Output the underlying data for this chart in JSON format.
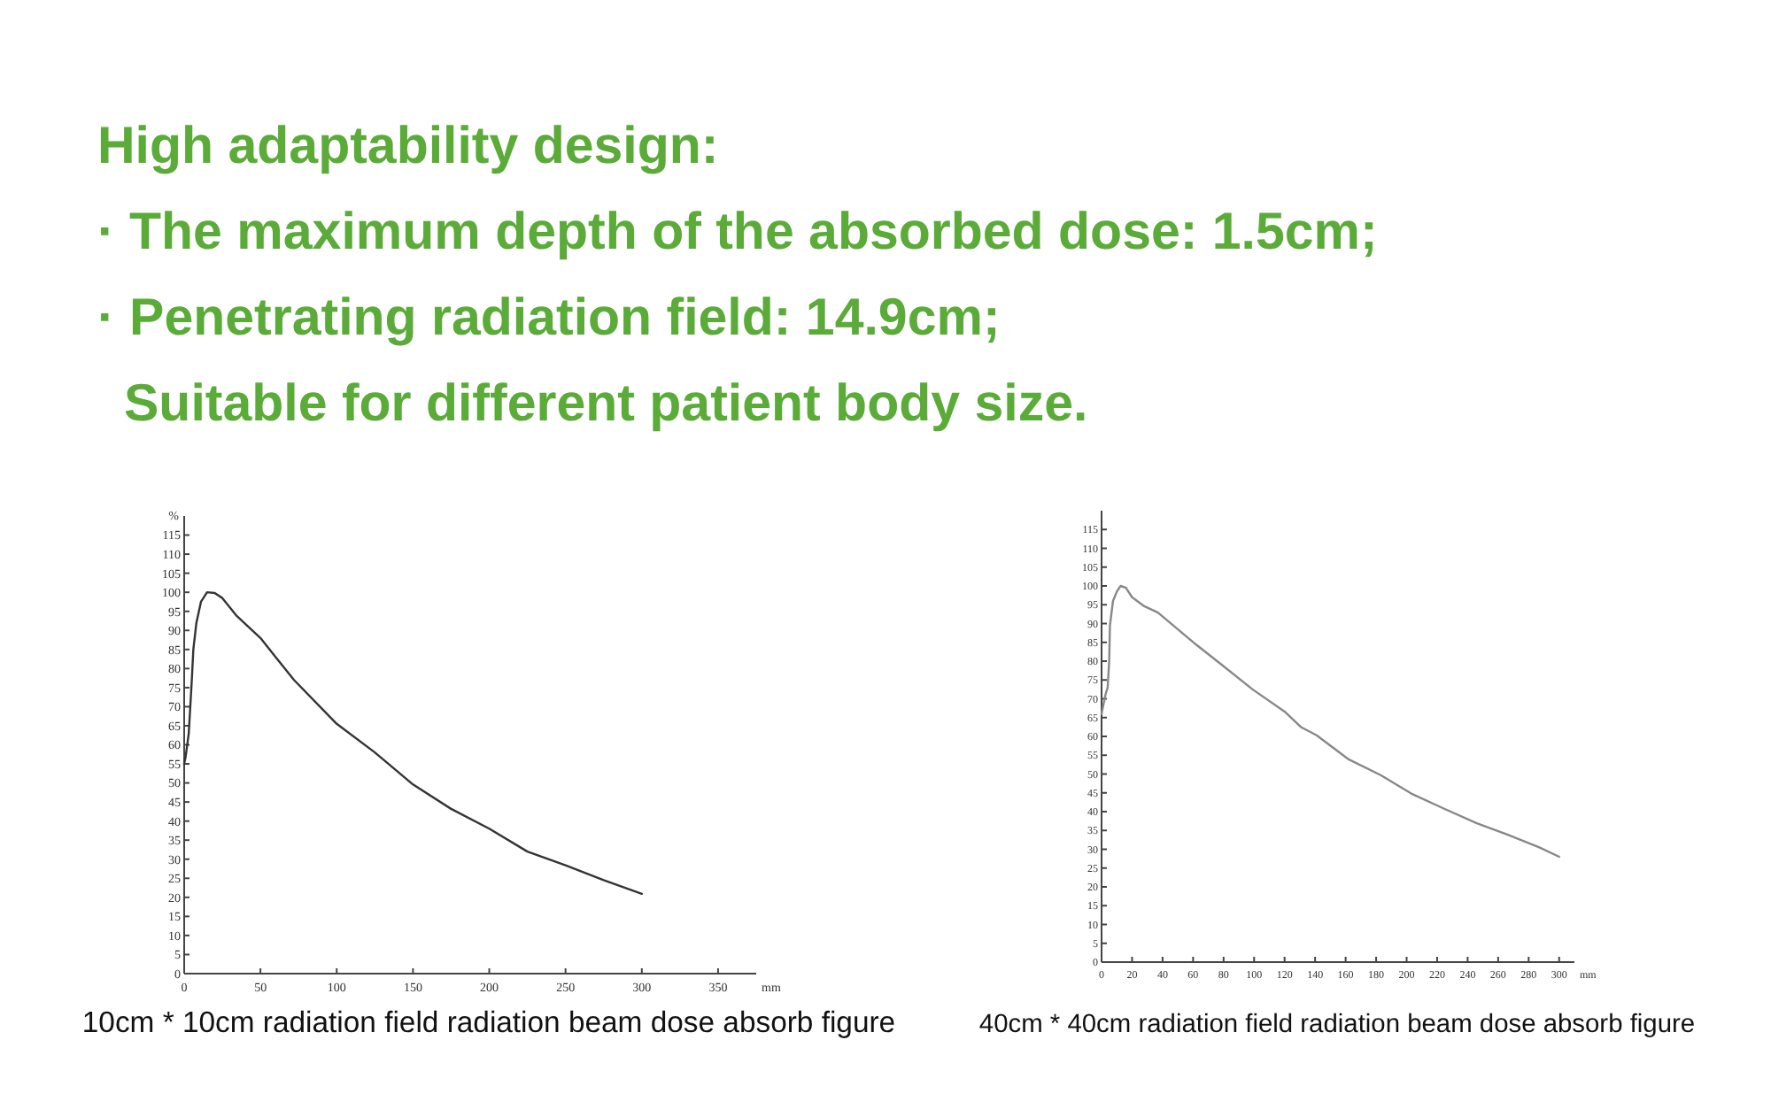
{
  "chart_data": [
    {
      "type": "other",
      "title": "High adaptability design:",
      "annotations": [
        "· The maximum depth of the absorbed dose: 1.5cm;",
        "· Penetrating radiation field: 14.9cm;",
        "Suitable for different patient body size."
      ]
    },
    {
      "type": "line",
      "title": "10cm * 10cm radiation field radiation beam dose absorb figure",
      "xlabel": "mm",
      "ylabel": "%",
      "x": [
        0,
        1,
        3,
        5,
        6,
        8,
        11,
        15,
        20,
        25,
        34,
        50,
        60,
        72,
        100,
        125,
        150,
        175,
        200,
        225,
        250,
        275,
        300
      ],
      "values": [
        55,
        57,
        63,
        77,
        85,
        92,
        97.5,
        100,
        99.8,
        98.5,
        94,
        88,
        83,
        77,
        65.5,
        58,
        49.6,
        43.2,
        38,
        32,
        28.4,
        24.5,
        20.9
      ],
      "color": "#333333",
      "xlim": [
        0,
        375
      ],
      "ylim": [
        0,
        120
      ],
      "xticks": [
        0,
        50,
        100,
        150,
        200,
        250,
        300,
        350
      ],
      "yticks": [
        0,
        5,
        10,
        15,
        20,
        25,
        30,
        35,
        40,
        45,
        50,
        55,
        60,
        65,
        70,
        75,
        80,
        85,
        90,
        95,
        100,
        105,
        110,
        115
      ]
    },
    {
      "type": "line",
      "title": "40cm * 40cm radiation field radiation beam dose absorb figure",
      "xlabel": "mm",
      "x": [
        0,
        2.5,
        4,
        5,
        5.5,
        7.5,
        10,
        12.5,
        16,
        20,
        28,
        37,
        47,
        62,
        78,
        99,
        120,
        131,
        141,
        162,
        183,
        204,
        225,
        246,
        266,
        287,
        300
      ],
      "values": [
        66,
        71,
        73,
        80,
        89.5,
        96,
        98.5,
        100,
        99.5,
        97,
        94.6,
        92.9,
        89.5,
        84.4,
        79.3,
        72.5,
        66.6,
        62.4,
        60.3,
        53.9,
        49.7,
        44.6,
        40.7,
        36.9,
        33.9,
        30.5,
        28
      ],
      "color": "#888888",
      "xlim": [
        0,
        310
      ],
      "ylim": [
        0,
        120
      ],
      "xticks": [
        0,
        20,
        40,
        60,
        80,
        100,
        120,
        140,
        160,
        180,
        200,
        220,
        240,
        260,
        280,
        300
      ],
      "yticks": [
        0,
        5,
        10,
        15,
        20,
        25,
        30,
        35,
        40,
        45,
        50,
        55,
        60,
        65,
        70,
        75,
        80,
        85,
        90,
        95,
        100,
        105,
        110,
        115
      ]
    }
  ]
}
